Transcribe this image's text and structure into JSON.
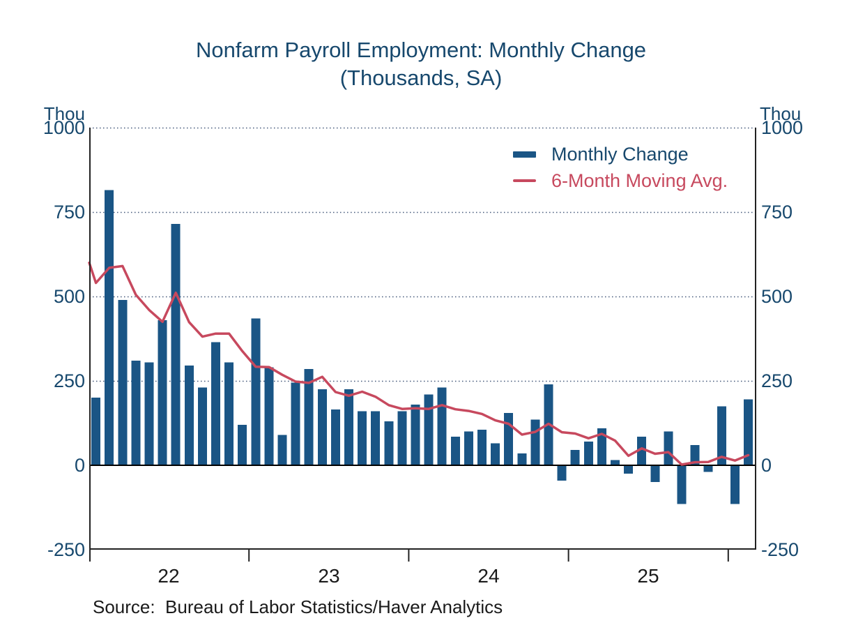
{
  "title": {
    "line1": "Nonfarm Payroll Employment: Monthly Change",
    "line2": "(Thousands, SA)"
  },
  "axes": {
    "unit_label": "Thou",
    "y_ticks": [
      "1000",
      "750",
      "500",
      "250",
      "0",
      "-250"
    ],
    "y_tick_values": [
      1000,
      750,
      500,
      250,
      0,
      -250
    ],
    "x_year_labels": [
      "22",
      "23",
      "24",
      "25"
    ],
    "ylim": [
      -250,
      1000
    ]
  },
  "legend": [
    {
      "label": "Monthly Change",
      "color": "#1a5585",
      "kind": "bar"
    },
    {
      "label": "6-Month Moving Avg.",
      "color": "#c7495e",
      "kind": "line"
    }
  ],
  "source_text": "Source:  Bureau of Labor Statistics/Haver Analytics",
  "colors": {
    "bar": "#1a5585",
    "line": "#c7495e",
    "navy_text": "#17486d",
    "black_text": "#1a1a1a",
    "grid_dotted": "#44597a",
    "zero_line": "#000000",
    "frame": "#222222"
  },
  "chart_data": {
    "type": "bar",
    "title": "Nonfarm Payroll Employment: Monthly Change (Thousands, SA)",
    "xlabel": "",
    "ylabel": "Thou",
    "ylim": [
      -250,
      1000
    ],
    "yticks": [
      1000,
      750,
      500,
      250,
      0,
      -250
    ],
    "grid": "horizontal-dotted",
    "legend_position": "top-right-inside",
    "x": [
      "2022-01",
      "2022-02",
      "2022-03",
      "2022-04",
      "2022-05",
      "2022-06",
      "2022-07",
      "2022-08",
      "2022-09",
      "2022-10",
      "2022-11",
      "2022-12",
      "2023-01",
      "2023-02",
      "2023-03",
      "2023-04",
      "2023-05",
      "2023-06",
      "2023-07",
      "2023-08",
      "2023-09",
      "2023-10",
      "2023-11",
      "2023-12",
      "2024-01",
      "2024-02",
      "2024-03",
      "2024-04",
      "2024-05",
      "2024-06",
      "2024-07",
      "2024-08",
      "2024-09",
      "2024-10",
      "2024-11",
      "2024-12",
      "2025-01",
      "2025-02",
      "2025-03",
      "2025-04",
      "2025-05",
      "2025-06",
      "2025-07",
      "2025-08",
      "2025-09",
      "2025-10",
      "2025-11",
      "2025-12",
      "2026-01",
      "2026-02"
    ],
    "year_tick_months": [
      0,
      12,
      24,
      36,
      48
    ],
    "year_label_center_months": [
      6,
      18,
      30,
      42
    ],
    "series": [
      {
        "name": "Monthly Change",
        "type": "bar",
        "color": "#1a5585",
        "values": [
          200,
          815,
          490,
          310,
          305,
          430,
          715,
          295,
          230,
          365,
          305,
          120,
          435,
          290,
          90,
          245,
          285,
          225,
          165,
          225,
          160,
          160,
          130,
          160,
          180,
          210,
          230,
          85,
          100,
          105,
          65,
          155,
          35,
          135,
          240,
          -45,
          45,
          70,
          110,
          15,
          -25,
          85,
          -50,
          100,
          -115,
          60,
          -20,
          175,
          -115,
          195
        ]
      },
      {
        "name": "6-Month Moving Avg.",
        "type": "line",
        "color": "#c7495e",
        "edge_start_value": 600,
        "values": [
          540,
          585,
          590,
          505,
          460,
          425,
          511,
          424,
          381,
          390,
          390,
          338,
          292,
          291,
          268,
          248,
          244,
          262,
          217,
          206,
          218,
          203,
          178,
          167,
          169,
          167,
          178,
          166,
          161,
          152,
          133,
          123,
          91,
          99,
          123,
          98,
          94,
          80,
          93,
          73,
          28,
          50,
          34,
          39,
          2,
          9,
          10,
          25,
          14,
          30
        ]
      }
    ]
  }
}
